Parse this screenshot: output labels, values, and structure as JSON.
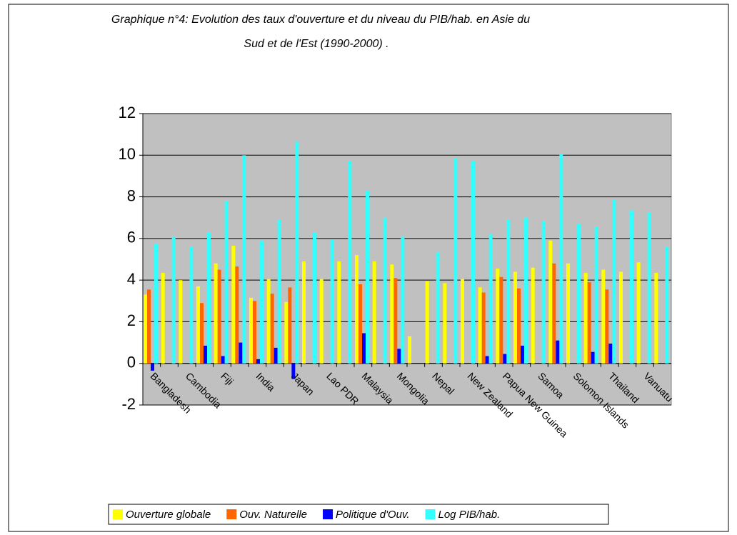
{
  "chart_data": {
    "type": "bar",
    "title": [
      "Graphique n°4: Evolution des taux d'ouverture et du niveau du PIB/hab. en Asie du",
      "Sud et de l'Est (1990-2000) ."
    ],
    "categories": [
      "Bangladesh",
      null,
      "Cambodia",
      null,
      "Fiji",
      null,
      "India",
      null,
      "Japan",
      null,
      "Lao PDR",
      null,
      "Malaysia",
      null,
      "Mongolia",
      null,
      "Nepal",
      null,
      "New Zealand",
      null,
      "Papua New Guinea",
      null,
      "Samoa",
      null,
      "Solomon Islands",
      null,
      "Thailand",
      null,
      "Vanuatu",
      null
    ],
    "series": [
      {
        "name": "Ouverture globale",
        "color": "#ffff00",
        "values": [
          3.3,
          4.35,
          4.0,
          3.7,
          4.8,
          5.65,
          3.15,
          4.05,
          2.95,
          4.9,
          4.05,
          4.9,
          5.2,
          4.9,
          4.75,
          1.3,
          3.95,
          3.85,
          4.05,
          3.65,
          4.55,
          4.4,
          4.6,
          5.9,
          4.8,
          4.35,
          4.5,
          4.4,
          4.85,
          4.35
        ]
      },
      {
        "name": "Ouv. Naturelle",
        "color": "#ff6600",
        "values": [
          3.55,
          null,
          null,
          2.9,
          4.5,
          4.65,
          3.0,
          3.35,
          3.65,
          null,
          null,
          null,
          3.8,
          null,
          4.1,
          null,
          null,
          null,
          null,
          3.4,
          4.15,
          3.6,
          null,
          4.8,
          null,
          3.9,
          3.55,
          null,
          null,
          null
        ]
      },
      {
        "name": "Politique d'Ouv.",
        "color": "#0000ff",
        "values": [
          -0.35,
          null,
          null,
          0.85,
          0.35,
          1.0,
          0.2,
          0.75,
          -0.75,
          null,
          null,
          null,
          1.45,
          null,
          0.7,
          null,
          null,
          null,
          null,
          0.35,
          0.45,
          0.85,
          null,
          1.1,
          null,
          0.55,
          0.95,
          null,
          null,
          null
        ]
      },
      {
        "name": "Log PIB/hab.",
        "color": "#33ffff",
        "values": [
          5.75,
          6.1,
          5.6,
          6.3,
          7.8,
          10.0,
          5.9,
          6.9,
          10.65,
          6.3,
          5.95,
          9.7,
          8.3,
          7.0,
          6.1,
          null,
          5.35,
          9.85,
          9.7,
          6.2,
          6.9,
          7.0,
          6.85,
          10.05,
          6.7,
          6.55,
          7.85,
          7.35,
          7.25,
          5.6
        ]
      }
    ],
    "ylim": [
      -2,
      12
    ],
    "yticks": [
      -2,
      0,
      2,
      4,
      6,
      8,
      10,
      12
    ],
    "grid": true,
    "legend": "bottom"
  }
}
